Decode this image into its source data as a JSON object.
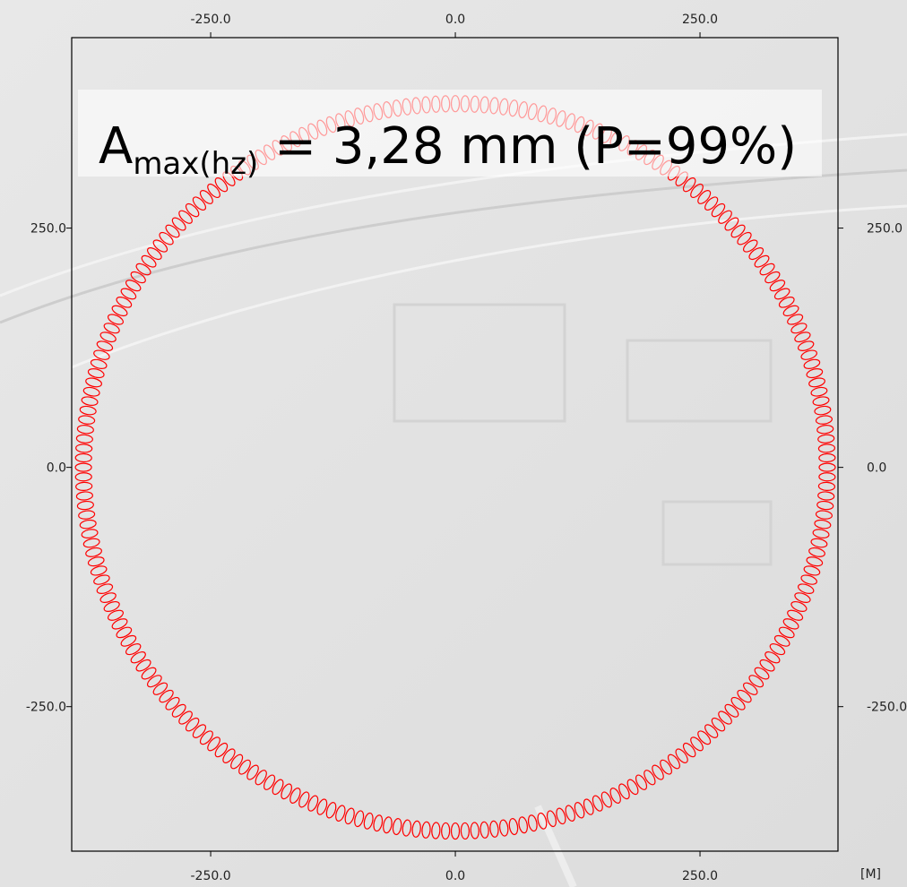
{
  "chart_data": {
    "type": "circle",
    "radius": 380,
    "color": "#ff0000",
    "annotation": {
      "symbol": "A",
      "subscript": "max(hz)",
      "text": " = 3,28 mm (P=99%)"
    },
    "unit_label": "[M]",
    "xlim": [
      -392,
      391
    ],
    "ylim": [
      -401,
      449
    ],
    "xticks": [
      {
        "value": -250,
        "label": "-250.0"
      },
      {
        "value": 0,
        "label": "0.0"
      },
      {
        "value": 250,
        "label": "250.0"
      }
    ],
    "yticks": [
      {
        "value": -250,
        "label": "-250.0"
      },
      {
        "value": 0,
        "label": "0.0"
      },
      {
        "value": 250,
        "label": "250.0"
      }
    ]
  }
}
